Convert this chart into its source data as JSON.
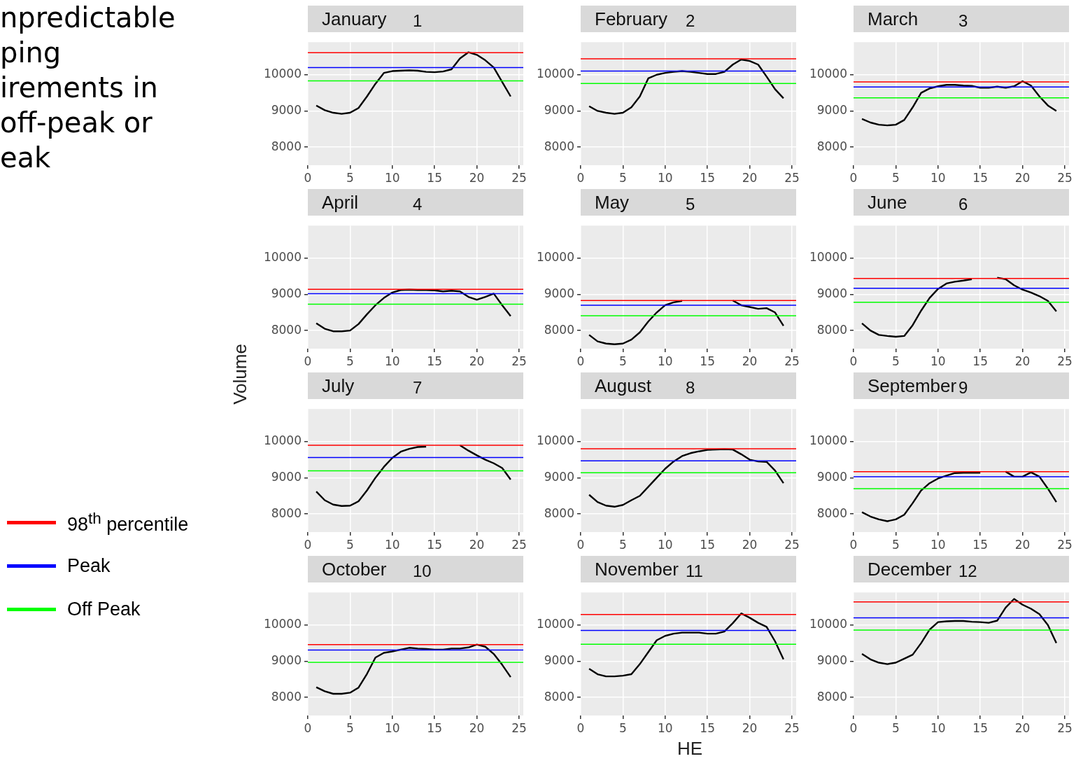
{
  "chart_data": [
    {
      "type": "line",
      "title": "January",
      "subtitle": "1",
      "ylabel": null,
      "annotations": [
        "npredictable",
        "ping",
        "irements in",
        "off-peak or",
        "eak"
      ],
      "legend": "left",
      "x": [
        1,
        2,
        3,
        4,
        5,
        6,
        7,
        8,
        9,
        10,
        11,
        12,
        13,
        14,
        15,
        16,
        17,
        18,
        19,
        20,
        21,
        22,
        23,
        24
      ],
      "series": [
        {
          "color": "#000000",
          "values": [
            9150,
            9020,
            8950,
            8920,
            8950,
            9080,
            9400,
            9750,
            10050,
            10100,
            10110,
            10120,
            10110,
            10080,
            10070,
            10090,
            10150,
            10450,
            10620,
            10550,
            10400,
            10200,
            9800,
            9400
          ]
        }
      ],
      "ref_lines": [
        {
          "axis": "y",
          "value": 10610,
          "label": "98$^{th}$ percentile",
          "color": "#ff0000"
        },
        {
          "axis": "y",
          "value": 10200,
          "label": "Peak",
          "color": "#0000ff"
        },
        {
          "axis": "y",
          "value": 9830,
          "label": "Off Peak",
          "color": "#00ff00"
        }
      ],
      "xlim": [
        0,
        25.5
      ],
      "xticks": [
        0,
        5,
        10,
        15,
        20,
        25
      ],
      "ylim": [
        7500,
        10900
      ],
      "yticks": [
        8000,
        9000,
        10000
      ],
      "grid": true
    },
    {
      "type": "line",
      "title": "February",
      "subtitle": "2",
      "x": [
        1,
        2,
        3,
        4,
        5,
        6,
        7,
        8,
        9,
        10,
        11,
        12,
        13,
        14,
        15,
        16,
        17,
        18,
        19,
        20,
        21,
        22,
        23,
        24
      ],
      "series": [
        {
          "color": "#000000",
          "values": [
            9130,
            9000,
            8950,
            8920,
            8950,
            9100,
            9400,
            9900,
            10000,
            10050,
            10080,
            10100,
            10080,
            10050,
            10020,
            10020,
            10080,
            10280,
            10420,
            10380,
            10280,
            9950,
            9600,
            9350
          ]
        }
      ],
      "ref_lines": [
        {
          "axis": "y",
          "value": 10440,
          "color": "#ff0000"
        },
        {
          "axis": "y",
          "value": 10100,
          "color": "#0000ff"
        },
        {
          "axis": "y",
          "value": 9760,
          "color": "#00ff00"
        }
      ],
      "xlim": [
        0,
        25.5
      ],
      "xticks": [
        0,
        5,
        10,
        15,
        20,
        25
      ],
      "ylim": [
        7500,
        10900
      ],
      "yticks": [
        8000,
        9000,
        10000
      ],
      "grid": true
    },
    {
      "type": "line",
      "title": "March",
      "subtitle": "3",
      "x": [
        1,
        2,
        3,
        4,
        5,
        6,
        7,
        8,
        9,
        10,
        11,
        12,
        13,
        14,
        15,
        16,
        17,
        18,
        19,
        20,
        21,
        22,
        23,
        24
      ],
      "series": [
        {
          "color": "#000000",
          "values": [
            8780,
            8680,
            8620,
            8600,
            8620,
            8750,
            9100,
            9500,
            9620,
            9680,
            9720,
            9720,
            9700,
            9690,
            9640,
            9640,
            9670,
            9640,
            9680,
            9820,
            9700,
            9400,
            9150,
            9000
          ]
        }
      ],
      "ref_lines": [
        {
          "axis": "y",
          "value": 9800,
          "color": "#ff0000"
        },
        {
          "axis": "y",
          "value": 9660,
          "color": "#0000ff"
        },
        {
          "axis": "y",
          "value": 9360,
          "color": "#00ff00"
        }
      ],
      "xlim": [
        0,
        25.5
      ],
      "xticks": [
        0,
        5,
        10,
        15,
        20,
        25
      ],
      "ylim": [
        7500,
        10900
      ],
      "yticks": [
        8000,
        9000,
        10000
      ],
      "grid": true
    },
    {
      "type": "line",
      "title": "April",
      "subtitle": "4",
      "ylabel": "Volume",
      "x": [
        1,
        2,
        3,
        4,
        5,
        6,
        7,
        8,
        9,
        10,
        11,
        12,
        13,
        14,
        15,
        16,
        17,
        18,
        19,
        20,
        21,
        22,
        23,
        24
      ],
      "series": [
        {
          "color": "#000000",
          "values": [
            8200,
            8050,
            7980,
            7980,
            8000,
            8180,
            8450,
            8700,
            8900,
            9050,
            9120,
            9130,
            9120,
            9120,
            9110,
            9080,
            9100,
            9080,
            8930,
            8850,
            8930,
            9020,
            8700,
            8400
          ]
        }
      ],
      "ref_lines": [
        {
          "axis": "y",
          "value": 9140,
          "color": "#ff0000"
        },
        {
          "axis": "y",
          "value": 9020,
          "color": "#0000ff"
        },
        {
          "axis": "y",
          "value": 8730,
          "color": "#00ff00"
        }
      ],
      "xlim": [
        0,
        25.5
      ],
      "xticks": [
        0,
        5,
        10,
        15,
        20,
        25
      ],
      "ylim": [
        7500,
        10900
      ],
      "yticks": [
        8000,
        9000,
        10000
      ],
      "grid": true
    },
    {
      "type": "line",
      "title": "May",
      "subtitle": "5",
      "x": [
        1,
        2,
        3,
        4,
        5,
        6,
        7,
        8,
        9,
        10,
        11,
        12,
        13,
        14,
        15,
        16,
        17,
        18,
        19,
        20,
        21,
        22,
        23,
        24
      ],
      "series": [
        {
          "color": "#000000",
          "values": [
            7880,
            7700,
            7640,
            7620,
            7640,
            7750,
            7950,
            8250,
            8500,
            8700,
            8780,
            8820,
            null,
            null,
            null,
            null,
            null,
            8830,
            8700,
            8650,
            8600,
            8620,
            8500,
            8130
          ]
        }
      ],
      "ref_lines": [
        {
          "axis": "y",
          "value": 8830,
          "color": "#ff0000"
        },
        {
          "axis": "y",
          "value": 8700,
          "color": "#0000ff"
        },
        {
          "axis": "y",
          "value": 8410,
          "color": "#00ff00"
        }
      ],
      "xlim": [
        0,
        25.5
      ],
      "xticks": [
        0,
        5,
        10,
        15,
        20,
        25
      ],
      "ylim": [
        7500,
        10900
      ],
      "yticks": [
        8000,
        9000,
        10000
      ],
      "grid": true
    },
    {
      "type": "line",
      "title": "June",
      "subtitle": "6",
      "x": [
        1,
        2,
        3,
        4,
        5,
        6,
        7,
        8,
        9,
        10,
        11,
        12,
        13,
        14,
        15,
        16,
        17,
        18,
        19,
        20,
        21,
        22,
        23,
        24
      ],
      "series": [
        {
          "color": "#000000",
          "values": [
            8200,
            8000,
            7880,
            7850,
            7830,
            7850,
            8150,
            8550,
            8900,
            9150,
            9300,
            9350,
            9380,
            9420,
            null,
            null,
            9460,
            9420,
            9250,
            9130,
            9050,
            8950,
            8820,
            8530
          ]
        }
      ],
      "ref_lines": [
        {
          "axis": "y",
          "value": 9440,
          "color": "#ff0000"
        },
        {
          "axis": "y",
          "value": 9170,
          "color": "#0000ff"
        },
        {
          "axis": "y",
          "value": 8780,
          "color": "#00ff00"
        }
      ],
      "xlim": [
        0,
        25.5
      ],
      "xticks": [
        0,
        5,
        10,
        15,
        20,
        25
      ],
      "ylim": [
        7500,
        10900
      ],
      "yticks": [
        8000,
        9000,
        10000
      ],
      "grid": true
    },
    {
      "type": "line",
      "title": "July",
      "subtitle": "7",
      "x": [
        1,
        2,
        3,
        4,
        5,
        6,
        7,
        8,
        9,
        10,
        11,
        12,
        13,
        14,
        15,
        16,
        17,
        18,
        19,
        20,
        21,
        22,
        23,
        24
      ],
      "series": [
        {
          "color": "#000000",
          "values": [
            8620,
            8380,
            8260,
            8220,
            8230,
            8350,
            8650,
            9000,
            9300,
            9550,
            9720,
            9800,
            9850,
            9860,
            null,
            null,
            null,
            9900,
            9750,
            9620,
            9500,
            9400,
            9270,
            8950
          ]
        }
      ],
      "ref_lines": [
        {
          "axis": "y",
          "value": 9900,
          "color": "#ff0000"
        },
        {
          "axis": "y",
          "value": 9560,
          "color": "#0000ff"
        },
        {
          "axis": "y",
          "value": 9190,
          "color": "#00ff00"
        }
      ],
      "xlim": [
        0,
        25.5
      ],
      "xticks": [
        0,
        5,
        10,
        15,
        20,
        25
      ],
      "ylim": [
        7500,
        10900
      ],
      "yticks": [
        8000,
        9000,
        10000
      ],
      "grid": true
    },
    {
      "type": "line",
      "title": "August",
      "subtitle": "8",
      "x": [
        1,
        2,
        3,
        4,
        5,
        6,
        7,
        8,
        9,
        10,
        11,
        12,
        13,
        14,
        15,
        16,
        17,
        18,
        19,
        20,
        21,
        22,
        23,
        24
      ],
      "series": [
        {
          "color": "#000000",
          "values": [
            8530,
            8330,
            8230,
            8200,
            8250,
            8380,
            8500,
            8750,
            9000,
            9250,
            9450,
            9600,
            9680,
            9730,
            9770,
            9780,
            9790,
            9780,
            9650,
            9500,
            9450,
            9440,
            9200,
            8850
          ]
        }
      ],
      "ref_lines": [
        {
          "axis": "y",
          "value": 9800,
          "color": "#ff0000"
        },
        {
          "axis": "y",
          "value": 9470,
          "color": "#0000ff"
        },
        {
          "axis": "y",
          "value": 9140,
          "color": "#00ff00"
        }
      ],
      "xlim": [
        0,
        25.5
      ],
      "xticks": [
        0,
        5,
        10,
        15,
        20,
        25
      ],
      "ylim": [
        7500,
        10900
      ],
      "yticks": [
        8000,
        9000,
        10000
      ],
      "grid": true
    },
    {
      "type": "line",
      "title": "September",
      "subtitle": "9",
      "x": [
        1,
        2,
        3,
        4,
        5,
        6,
        7,
        8,
        9,
        10,
        11,
        12,
        13,
        14,
        15,
        16,
        17,
        18,
        19,
        20,
        21,
        22,
        23,
        24
      ],
      "series": [
        {
          "color": "#000000",
          "values": [
            8050,
            7930,
            7850,
            7800,
            7850,
            7980,
            8300,
            8650,
            8850,
            8980,
            9060,
            9130,
            9140,
            9140,
            9140,
            null,
            null,
            9170,
            9030,
            9030,
            9150,
            9030,
            8700,
            8330
          ]
        }
      ],
      "ref_lines": [
        {
          "axis": "y",
          "value": 9170,
          "color": "#ff0000"
        },
        {
          "axis": "y",
          "value": 9030,
          "color": "#0000ff"
        },
        {
          "axis": "y",
          "value": 8700,
          "color": "#00ff00"
        }
      ],
      "xlim": [
        0,
        25.5
      ],
      "xticks": [
        0,
        5,
        10,
        15,
        20,
        25
      ],
      "ylim": [
        7500,
        10900
      ],
      "yticks": [
        8000,
        9000,
        10000
      ],
      "grid": true
    },
    {
      "type": "line",
      "title": "October",
      "subtitle": "10",
      "x": [
        1,
        2,
        3,
        4,
        5,
        6,
        7,
        8,
        9,
        10,
        11,
        12,
        13,
        14,
        15,
        16,
        17,
        18,
        19,
        20,
        21,
        22,
        23,
        24
      ],
      "series": [
        {
          "color": "#000000",
          "values": [
            8280,
            8170,
            8100,
            8100,
            8130,
            8270,
            8650,
            9100,
            9230,
            9270,
            9320,
            9370,
            9350,
            9340,
            9320,
            9320,
            9350,
            9350,
            9380,
            9460,
            9400,
            9200,
            8900,
            8560
          ]
        }
      ],
      "ref_lines": [
        {
          "axis": "y",
          "value": 9460,
          "color": "#ff0000"
        },
        {
          "axis": "y",
          "value": 9310,
          "color": "#0000ff"
        },
        {
          "axis": "y",
          "value": 8970,
          "color": "#00ff00"
        }
      ],
      "xlim": [
        0,
        25.5
      ],
      "xticks": [
        0,
        5,
        10,
        15,
        20,
        25
      ],
      "ylim": [
        7500,
        10900
      ],
      "yticks": [
        8000,
        9000,
        10000
      ],
      "grid": true
    },
    {
      "type": "line",
      "title": "November",
      "subtitle": "11",
      "xlabel": "HE",
      "x": [
        1,
        2,
        3,
        4,
        5,
        6,
        7,
        8,
        9,
        10,
        11,
        12,
        13,
        14,
        15,
        16,
        17,
        18,
        19,
        20,
        21,
        22,
        23,
        24
      ],
      "series": [
        {
          "color": "#000000",
          "values": [
            8790,
            8640,
            8580,
            8580,
            8600,
            8640,
            8920,
            9250,
            9580,
            9700,
            9760,
            9790,
            9790,
            9790,
            9760,
            9760,
            9820,
            10050,
            10320,
            10200,
            10060,
            9950,
            9550,
            9050
          ]
        }
      ],
      "ref_lines": [
        {
          "axis": "y",
          "value": 10290,
          "color": "#ff0000"
        },
        {
          "axis": "y",
          "value": 9850,
          "color": "#0000ff"
        },
        {
          "axis": "y",
          "value": 9470,
          "color": "#00ff00"
        }
      ],
      "xlim": [
        0,
        25.5
      ],
      "xticks": [
        0,
        5,
        10,
        15,
        20,
        25
      ],
      "ylim": [
        7500,
        10900
      ],
      "yticks": [
        8000,
        9000,
        10000
      ],
      "grid": true
    },
    {
      "type": "line",
      "title": "December",
      "subtitle": "12",
      "x": [
        1,
        2,
        3,
        4,
        5,
        6,
        7,
        8,
        9,
        10,
        11,
        12,
        13,
        14,
        15,
        16,
        17,
        18,
        19,
        20,
        21,
        22,
        23,
        24
      ],
      "series": [
        {
          "color": "#000000",
          "values": [
            9200,
            9050,
            8960,
            8920,
            8960,
            9070,
            9180,
            9500,
            9870,
            10080,
            10100,
            10110,
            10110,
            10090,
            10080,
            10060,
            10120,
            10480,
            10720,
            10560,
            10450,
            10300,
            10000,
            9500
          ]
        }
      ],
      "ref_lines": [
        {
          "axis": "y",
          "value": 10640,
          "color": "#ff0000"
        },
        {
          "axis": "y",
          "value": 10200,
          "color": "#0000ff"
        },
        {
          "axis": "y",
          "value": 9860,
          "color": "#00ff00"
        }
      ],
      "xlim": [
        0,
        25.5
      ],
      "xticks": [
        0,
        5,
        10,
        15,
        20,
        25
      ],
      "ylim": [
        7500,
        10900
      ],
      "yticks": [
        8000,
        9000,
        10000
      ],
      "grid": true
    }
  ]
}
